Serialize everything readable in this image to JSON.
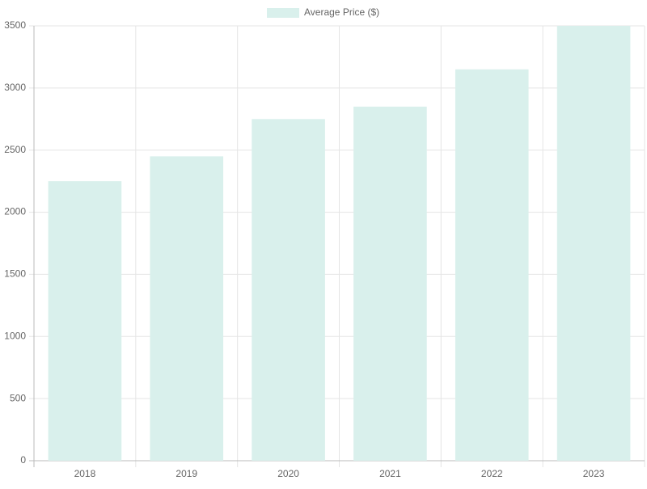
{
  "chart_data": {
    "type": "bar",
    "categories": [
      "2018",
      "2019",
      "2020",
      "2021",
      "2022",
      "2023"
    ],
    "series": [
      {
        "name": "Average Price ($)",
        "color": "#d9f0ec",
        "values": [
          2250,
          2450,
          2750,
          2850,
          3150,
          3500
        ]
      }
    ],
    "ylim": [
      0,
      3500
    ],
    "yticks": [
      0,
      500,
      1000,
      1500,
      2000,
      2500,
      3000,
      3500
    ],
    "grid": true,
    "legend": "top"
  }
}
